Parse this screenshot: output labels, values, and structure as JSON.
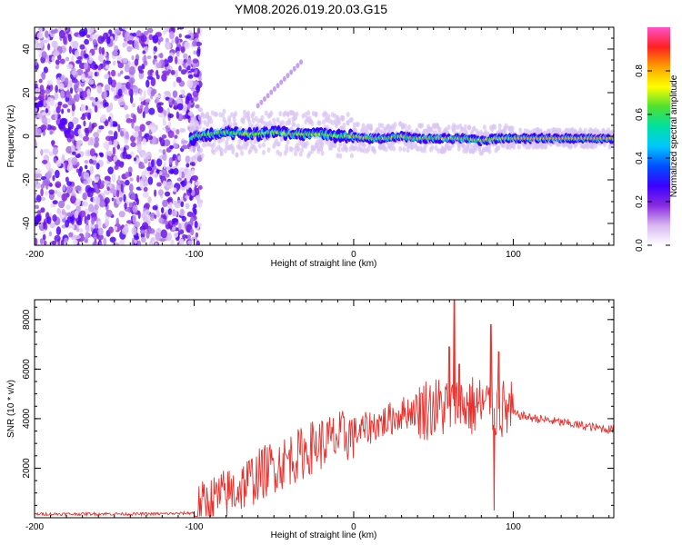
{
  "figure_title": "YM08.2026.019.20.03.G15",
  "chart_data": [
    {
      "type": "heatmap",
      "title": "",
      "xlabel": "Height of straight line (km)",
      "ylabel": "Frequency (Hz)",
      "xlim": [
        -200,
        163
      ],
      "ylim": [
        -50,
        50
      ],
      "xticks": [
        -200,
        -100,
        0,
        100
      ],
      "yticks": [
        -40,
        -20,
        0,
        20,
        40
      ],
      "colorbar": {
        "label": "Normalized spectral amplitude",
        "range": [
          0,
          1
        ],
        "ticks": [
          0.0,
          0.2,
          0.4,
          0.6,
          0.8
        ],
        "colors": [
          "#ffffff",
          "#d7b8f0",
          "#8a2be2",
          "#3a00ff",
          "#0050ff",
          "#00c8ff",
          "#00e0a0",
          "#50e030",
          "#ffff00",
          "#ffa000",
          "#ff2020",
          "#ff50c8"
        ]
      },
      "noise_region": {
        "x_from": -200,
        "x_to": -100,
        "description": "broadband purple noise"
      },
      "signal_ridge": {
        "x": [
          -100,
          -90,
          -80,
          -70,
          -60,
          -50,
          -40,
          -30,
          -20,
          -10,
          0,
          10,
          20,
          30,
          40,
          50,
          60,
          70,
          80,
          90,
          100,
          110,
          120,
          140,
          163
        ],
        "frequency": [
          0,
          1,
          2,
          1,
          1,
          2,
          1,
          1,
          1,
          0,
          0,
          -1,
          -1,
          0,
          -1,
          -1,
          -1,
          -1,
          -2,
          -1,
          -1,
          -1,
          -1,
          -1,
          -1
        ]
      },
      "side_feature": {
        "x": [
          -60,
          -33
        ],
        "frequency": [
          14,
          34
        ]
      }
    },
    {
      "type": "line",
      "title": "",
      "xlabel": "Height of straight line (km)",
      "ylabel": "SNR (10 * v/v)",
      "xlim": [
        -200,
        163
      ],
      "ylim": [
        0,
        8800
      ],
      "xticks": [
        -200,
        -100,
        0,
        100
      ],
      "yticks": [
        2000,
        4000,
        6000,
        8000
      ],
      "series": [
        {
          "name": "SNR",
          "color": "#e8302c",
          "x": [
            -200,
            -180,
            -160,
            -140,
            -120,
            -110,
            -100,
            -95,
            -90,
            -85,
            -80,
            -75,
            -70,
            -65,
            -60,
            -55,
            -50,
            -45,
            -40,
            -35,
            -30,
            -25,
            -20,
            -15,
            -10,
            -5,
            0,
            5,
            10,
            15,
            20,
            25,
            30,
            35,
            40,
            45,
            50,
            55,
            60,
            65,
            70,
            75,
            80,
            85,
            90,
            95,
            100,
            110,
            120,
            130,
            140,
            150,
            163
          ],
          "y": [
            150,
            150,
            160,
            150,
            160,
            170,
            200,
            400,
            600,
            800,
            900,
            1100,
            1300,
            1500,
            1700,
            1900,
            2100,
            2200,
            2400,
            2500,
            2700,
            2900,
            3000,
            3100,
            3200,
            3300,
            3400,
            3500,
            3650,
            3800,
            3900,
            4050,
            4200,
            4300,
            4400,
            4400,
            4450,
            4450,
            4500,
            4500,
            4550,
            4500,
            4500,
            4450,
            4400,
            4350,
            4200,
            4050,
            3950,
            3850,
            3750,
            3650,
            3550
          ]
        }
      ],
      "spikes": [
        {
          "x": 60,
          "y": 6900
        },
        {
          "x": 63,
          "y": 8800
        },
        {
          "x": 66,
          "y": 6200
        },
        {
          "x": 86,
          "y": 7800
        },
        {
          "x": 88,
          "y": 300
        },
        {
          "x": 91,
          "y": 6700
        }
      ],
      "noise_amplitude": [
        {
          "x_from": -200,
          "x_to": -100,
          "amp": 60
        },
        {
          "x_from": -100,
          "x_to": 0,
          "amp": 1100
        },
        {
          "x_from": 0,
          "x_to": 40,
          "amp": 700
        },
        {
          "x_from": 40,
          "x_to": 100,
          "amp": 1300
        },
        {
          "x_from": 100,
          "x_to": 163,
          "amp": 180
        }
      ]
    }
  ]
}
